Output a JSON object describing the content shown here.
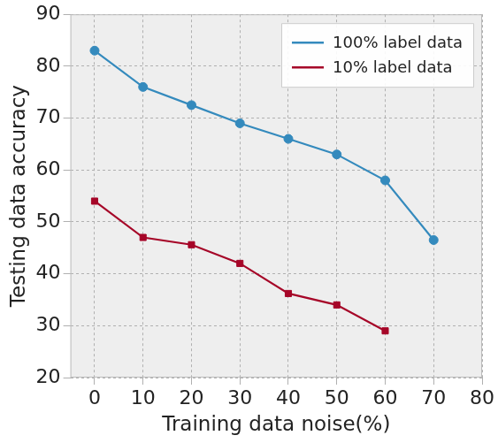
{
  "chart_data": {
    "type": "line",
    "x_label": "Training data noise(%)",
    "y_label": "Testing data accuracy",
    "x": [
      0,
      10,
      20,
      30,
      40,
      50,
      60,
      70
    ],
    "series": [
      {
        "name": "100% label data",
        "color": "#348abd",
        "marker": "circle",
        "line_style": "solid",
        "values": [
          83,
          76,
          72.5,
          69,
          66,
          63,
          58,
          46.5
        ]
      },
      {
        "name": "10% label data",
        "color": "#a60628",
        "marker": "square",
        "line_style": "solid",
        "values": [
          54,
          47,
          45.6,
          42,
          36.2,
          34,
          29,
          null
        ]
      }
    ],
    "xlim": [
      -5,
      80
    ],
    "xticks": [
      0,
      10,
      20,
      30,
      40,
      50,
      60,
      70,
      80
    ],
    "ylim": [
      20,
      90
    ],
    "yticks": [
      20,
      30,
      40,
      50,
      60,
      70,
      80,
      90
    ],
    "grid": true,
    "legend": "upper right"
  }
}
